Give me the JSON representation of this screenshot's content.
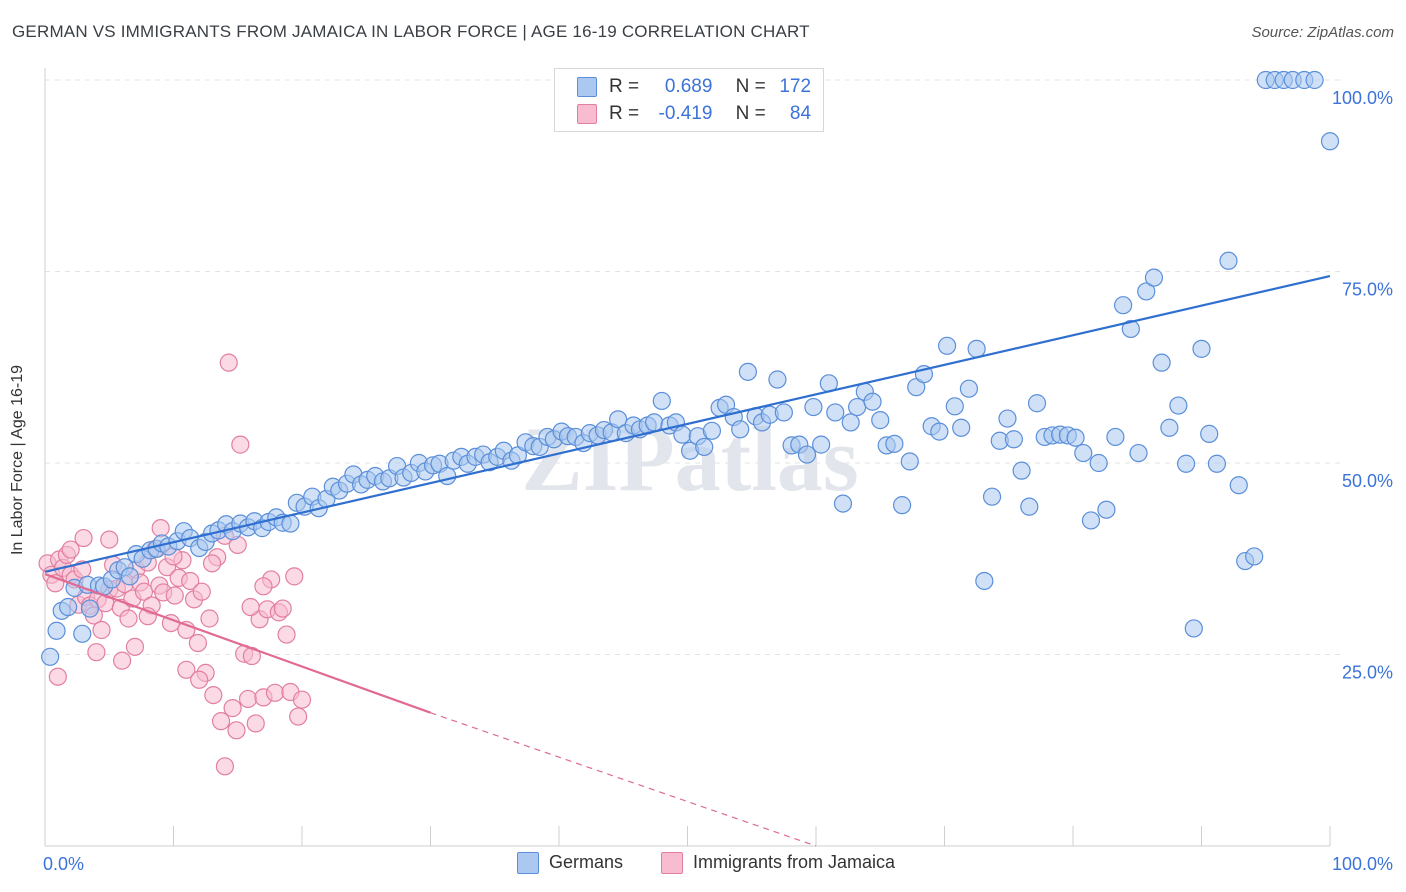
{
  "title": "GERMAN VS IMMIGRANTS FROM JAMAICA IN LABOR FORCE | AGE 16-19 CORRELATION CHART",
  "source": "Source: ZipAtlas.com",
  "watermark": "ZIPatlas",
  "stats": {
    "germans": {
      "r_label": "R =",
      "r": "0.689",
      "n_label": "N =",
      "n": "172"
    },
    "jamaica": {
      "r_label": "R =",
      "r": "-0.419",
      "n_label": "N =",
      "n": "84"
    }
  },
  "colors": {
    "germans_fill": "#aac8f0",
    "germans_stroke": "#5b8fd9",
    "germans_line": "#2f6fd0",
    "jamaica_fill": "#f7bcd0",
    "jamaica_stroke": "#e27fa0",
    "jamaica_line": "#e06a94",
    "tick_label": "#3b73d9",
    "grid": "#e3e3e3"
  },
  "chart_data": {
    "type": "scatter",
    "title": "GERMAN VS IMMIGRANTS FROM JAMAICA IN LABOR FORCE | AGE 16-19 CORRELATION CHART",
    "xlabel": "",
    "ylabel": "In Labor Force | Age 16-19",
    "xlim": [
      0,
      100
    ],
    "ylim": [
      0,
      100
    ],
    "x_tick_labels": [
      {
        "value": 0,
        "label": "0.0%"
      },
      {
        "value": 100,
        "label": "100.0%"
      }
    ],
    "y_tick_labels": [
      {
        "value": 25,
        "label": "25.0%"
      },
      {
        "value": 50,
        "label": "50.0%"
      },
      {
        "value": 75,
        "label": "75.0%"
      },
      {
        "value": 100,
        "label": "100.0%"
      }
    ],
    "grid": true,
    "legend_position": "bottom-center",
    "series": [
      {
        "name": "Germans",
        "trend": {
          "x": [
            0,
            100
          ],
          "y": [
            35.8,
            74.4
          ]
        },
        "points": [
          [
            0.4,
            24.7
          ],
          [
            0.9,
            28.1
          ],
          [
            1.3,
            30.7
          ],
          [
            1.8,
            31.2
          ],
          [
            2.3,
            33.7
          ],
          [
            2.9,
            27.7
          ],
          [
            3.5,
            31.0
          ],
          [
            3.3,
            34.1
          ],
          [
            4.2,
            34.0
          ],
          [
            4.6,
            33.9
          ],
          [
            5.2,
            34.8
          ],
          [
            5.7,
            36.0
          ],
          [
            6.2,
            36.4
          ],
          [
            6.6,
            35.2
          ],
          [
            7.1,
            38.1
          ],
          [
            7.6,
            37.5
          ],
          [
            8.2,
            38.6
          ],
          [
            8.7,
            38.8
          ],
          [
            9.1,
            39.5
          ],
          [
            9.6,
            39.1
          ],
          [
            10.3,
            39.8
          ],
          [
            10.8,
            41.1
          ],
          [
            11.3,
            40.2
          ],
          [
            12.0,
            38.9
          ],
          [
            12.5,
            39.7
          ],
          [
            13.0,
            40.8
          ],
          [
            13.5,
            41.2
          ],
          [
            14.1,
            42.0
          ],
          [
            14.6,
            41.1
          ],
          [
            15.2,
            42.1
          ],
          [
            15.8,
            41.6
          ],
          [
            16.3,
            42.4
          ],
          [
            16.9,
            41.5
          ],
          [
            17.4,
            42.3
          ],
          [
            18.0,
            42.9
          ],
          [
            18.5,
            42.2
          ],
          [
            19.1,
            42.1
          ],
          [
            19.6,
            44.8
          ],
          [
            20.2,
            44.3
          ],
          [
            20.8,
            45.6
          ],
          [
            21.3,
            44.1
          ],
          [
            21.9,
            45.3
          ],
          [
            22.4,
            46.9
          ],
          [
            22.9,
            46.4
          ],
          [
            23.5,
            47.3
          ],
          [
            24.0,
            48.5
          ],
          [
            24.6,
            47.2
          ],
          [
            25.1,
            47.8
          ],
          [
            25.7,
            48.3
          ],
          [
            26.3,
            47.6
          ],
          [
            26.8,
            48.0
          ],
          [
            27.4,
            49.6
          ],
          [
            27.9,
            48.1
          ],
          [
            28.5,
            48.7
          ],
          [
            29.1,
            50.0
          ],
          [
            29.6,
            48.9
          ],
          [
            30.2,
            49.7
          ],
          [
            30.7,
            49.9
          ],
          [
            31.3,
            48.3
          ],
          [
            31.8,
            50.3
          ],
          [
            32.4,
            50.8
          ],
          [
            32.9,
            49.9
          ],
          [
            33.5,
            50.8
          ],
          [
            34.1,
            51.1
          ],
          [
            34.6,
            50.1
          ],
          [
            35.2,
            50.8
          ],
          [
            35.7,
            51.6
          ],
          [
            36.3,
            50.3
          ],
          [
            36.8,
            51.0
          ],
          [
            37.4,
            52.7
          ],
          [
            38.0,
            52.2
          ],
          [
            38.5,
            52.1
          ],
          [
            39.1,
            53.4
          ],
          [
            39.6,
            53.1
          ],
          [
            40.2,
            54.1
          ],
          [
            40.7,
            53.5
          ],
          [
            41.3,
            53.4
          ],
          [
            41.9,
            52.6
          ],
          [
            42.4,
            53.9
          ],
          [
            43.0,
            53.6
          ],
          [
            43.5,
            54.3
          ],
          [
            44.1,
            54.0
          ],
          [
            44.6,
            55.7
          ],
          [
            45.2,
            53.9
          ],
          [
            45.8,
            54.9
          ],
          [
            46.3,
            54.4
          ],
          [
            46.9,
            54.9
          ],
          [
            47.4,
            55.3
          ],
          [
            48.0,
            58.1
          ],
          [
            48.6,
            54.9
          ],
          [
            49.1,
            55.3
          ],
          [
            49.6,
            53.7
          ],
          [
            50.2,
            51.6
          ],
          [
            50.8,
            53.5
          ],
          [
            51.3,
            52.1
          ],
          [
            51.9,
            54.2
          ],
          [
            52.5,
            57.2
          ],
          [
            53.0,
            57.6
          ],
          [
            53.6,
            56.0
          ],
          [
            54.1,
            54.4
          ],
          [
            54.7,
            61.9
          ],
          [
            55.3,
            56.1
          ],
          [
            55.8,
            55.3
          ],
          [
            56.4,
            56.3
          ],
          [
            57.0,
            60.9
          ],
          [
            57.5,
            56.6
          ],
          [
            58.1,
            52.3
          ],
          [
            58.7,
            52.4
          ],
          [
            59.3,
            51.1
          ],
          [
            59.8,
            57.3
          ],
          [
            60.4,
            52.4
          ],
          [
            61.0,
            60.4
          ],
          [
            61.5,
            56.6
          ],
          [
            62.1,
            44.7
          ],
          [
            62.7,
            55.3
          ],
          [
            63.2,
            57.3
          ],
          [
            63.8,
            59.3
          ],
          [
            64.4,
            58.0
          ],
          [
            65.0,
            55.6
          ],
          [
            65.5,
            52.3
          ],
          [
            66.1,
            52.5
          ],
          [
            66.7,
            44.5
          ],
          [
            67.3,
            50.2
          ],
          [
            67.8,
            59.9
          ],
          [
            68.4,
            61.6
          ],
          [
            69.0,
            54.8
          ],
          [
            69.6,
            54.1
          ],
          [
            70.2,
            65.3
          ],
          [
            70.8,
            57.4
          ],
          [
            71.3,
            54.6
          ],
          [
            71.9,
            59.7
          ],
          [
            72.5,
            64.9
          ],
          [
            73.1,
            34.6
          ],
          [
            73.7,
            45.6
          ],
          [
            74.3,
            52.9
          ],
          [
            74.9,
            55.8
          ],
          [
            75.4,
            53.1
          ],
          [
            76.0,
            49.0
          ],
          [
            76.6,
            44.3
          ],
          [
            77.2,
            57.8
          ],
          [
            77.8,
            53.4
          ],
          [
            78.4,
            53.6
          ],
          [
            79.0,
            53.7
          ],
          [
            79.6,
            53.6
          ],
          [
            80.2,
            53.3
          ],
          [
            80.8,
            51.3
          ],
          [
            81.4,
            42.5
          ],
          [
            82.0,
            50.0
          ],
          [
            82.6,
            43.9
          ],
          [
            83.3,
            53.4
          ],
          [
            83.9,
            70.6
          ],
          [
            84.5,
            67.5
          ],
          [
            85.1,
            51.3
          ],
          [
            85.7,
            72.4
          ],
          [
            86.3,
            74.2
          ],
          [
            86.9,
            63.1
          ],
          [
            87.5,
            54.6
          ],
          [
            88.2,
            57.5
          ],
          [
            88.8,
            49.9
          ],
          [
            89.4,
            28.4
          ],
          [
            90.0,
            64.9
          ],
          [
            90.6,
            53.8
          ],
          [
            91.2,
            49.9
          ],
          [
            92.1,
            76.4
          ],
          [
            92.9,
            47.1
          ],
          [
            93.4,
            37.2
          ],
          [
            94.1,
            37.8
          ],
          [
            95.0,
            100.0
          ],
          [
            95.7,
            100.0
          ],
          [
            96.4,
            100.0
          ],
          [
            97.1,
            100.0
          ],
          [
            98.0,
            100.0
          ],
          [
            98.8,
            100.0
          ],
          [
            100.0,
            92.0
          ]
        ]
      },
      {
        "name": "Immigrants from Jamaica",
        "trend": {
          "x": [
            0,
            30
          ],
          "y": [
            35.5,
            17.4
          ]
        },
        "trend_extension": {
          "x": [
            30,
            60
          ],
          "y": [
            17.4,
            0
          ]
        },
        "points": [
          [
            0.2,
            36.9
          ],
          [
            0.5,
            35.4
          ],
          [
            0.8,
            34.3
          ],
          [
            1.1,
            37.4
          ],
          [
            1.4,
            36.3
          ],
          [
            1.7,
            38.0
          ],
          [
            2.0,
            35.4
          ],
          [
            2.3,
            34.8
          ],
          [
            2.6,
            31.5
          ],
          [
            2.9,
            36.1
          ],
          [
            3.2,
            32.5
          ],
          [
            3.5,
            31.4
          ],
          [
            3.8,
            30.1
          ],
          [
            4.1,
            32.2
          ],
          [
            4.4,
            28.2
          ],
          [
            4.7,
            31.7
          ],
          [
            5.0,
            33.5
          ],
          [
            5.3,
            36.7
          ],
          [
            5.6,
            33.6
          ],
          [
            5.9,
            31.1
          ],
          [
            6.2,
            34.2
          ],
          [
            6.5,
            29.7
          ],
          [
            6.8,
            32.3
          ],
          [
            7.1,
            36.1
          ],
          [
            7.4,
            34.4
          ],
          [
            7.7,
            33.2
          ],
          [
            8.0,
            37.0
          ],
          [
            8.3,
            31.4
          ],
          [
            8.6,
            38.8
          ],
          [
            8.9,
            34.0
          ],
          [
            9.2,
            33.1
          ],
          [
            9.5,
            36.4
          ],
          [
            9.8,
            29.1
          ],
          [
            10.1,
            32.7
          ],
          [
            10.4,
            35.0
          ],
          [
            10.7,
            37.3
          ],
          [
            11.0,
            28.2
          ],
          [
            11.3,
            34.6
          ],
          [
            11.6,
            32.2
          ],
          [
            11.9,
            26.5
          ],
          [
            12.2,
            33.2
          ],
          [
            12.5,
            22.6
          ],
          [
            12.8,
            29.7
          ],
          [
            13.1,
            19.7
          ],
          [
            13.4,
            37.7
          ],
          [
            13.7,
            16.3
          ],
          [
            14.0,
            10.4
          ],
          [
            14.3,
            63.1
          ],
          [
            14.6,
            18.0
          ],
          [
            14.9,
            15.1
          ],
          [
            15.2,
            52.4
          ],
          [
            15.5,
            25.1
          ],
          [
            15.8,
            19.2
          ],
          [
            16.1,
            24.8
          ],
          [
            16.4,
            16.0
          ],
          [
            16.7,
            29.6
          ],
          [
            17.0,
            19.4
          ],
          [
            17.3,
            30.9
          ],
          [
            17.6,
            34.8
          ],
          [
            17.9,
            20.0
          ],
          [
            18.2,
            30.5
          ],
          [
            18.5,
            31.0
          ],
          [
            18.8,
            27.6
          ],
          [
            19.1,
            20.1
          ],
          [
            19.4,
            35.2
          ],
          [
            19.7,
            16.9
          ],
          [
            20.0,
            19.1
          ],
          [
            1.0,
            22.1
          ],
          [
            2.0,
            38.7
          ],
          [
            3.0,
            40.2
          ],
          [
            4.0,
            25.3
          ],
          [
            5.0,
            40.0
          ],
          [
            6.0,
            24.2
          ],
          [
            7.0,
            26.0
          ],
          [
            8.0,
            30.0
          ],
          [
            9.0,
            41.5
          ],
          [
            10.0,
            37.8
          ],
          [
            11.0,
            23.0
          ],
          [
            12.0,
            21.7
          ],
          [
            13.0,
            36.9
          ],
          [
            14.0,
            40.5
          ],
          [
            15.0,
            39.3
          ],
          [
            16.0,
            31.2
          ],
          [
            17.0,
            33.9
          ]
        ]
      }
    ]
  },
  "bottom_legend": {
    "germans": "Germans",
    "jamaica": "Immigrants from Jamaica"
  }
}
